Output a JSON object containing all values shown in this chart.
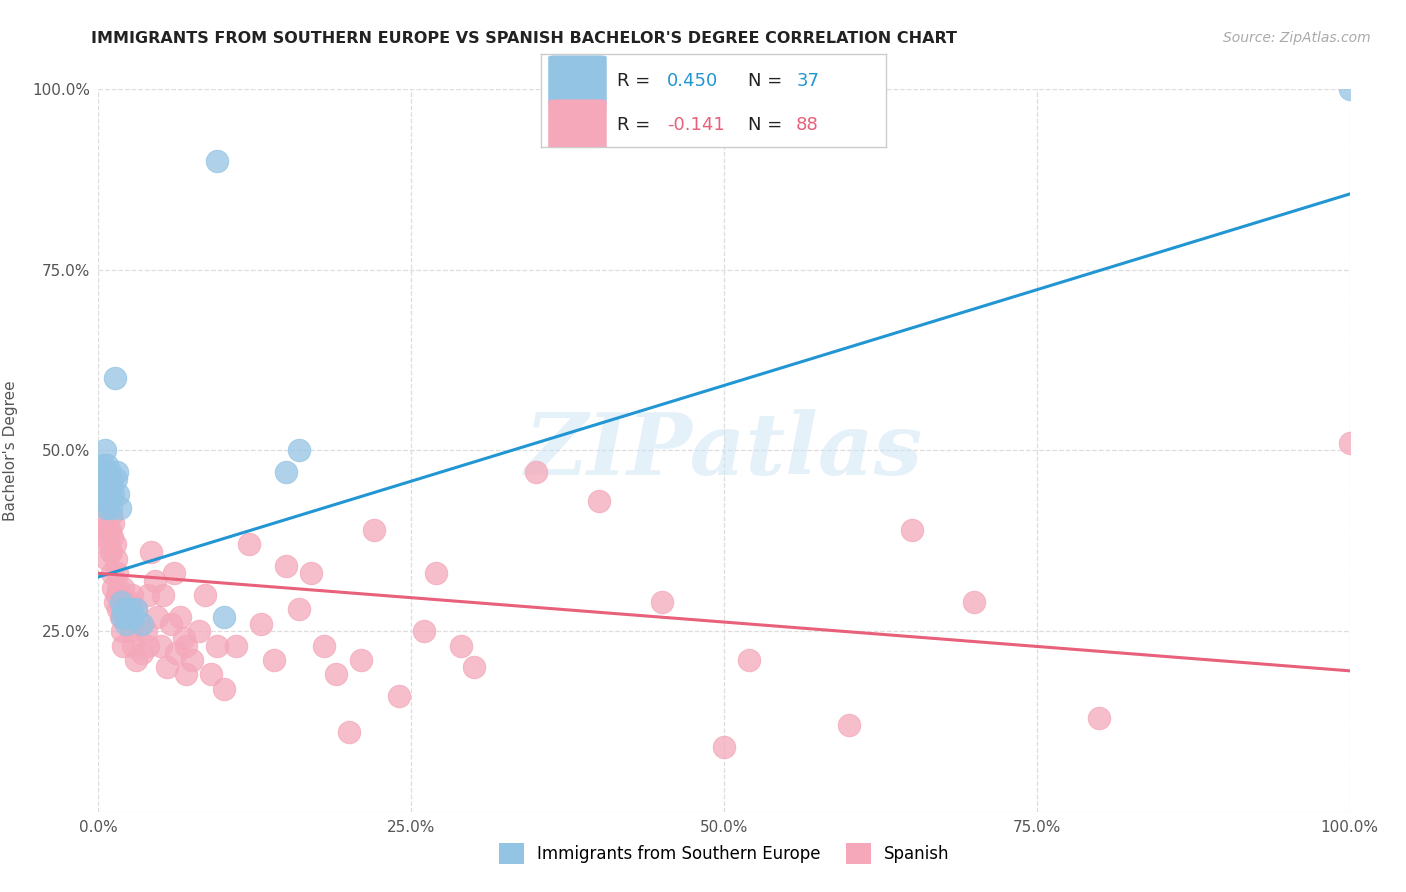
{
  "title": "IMMIGRANTS FROM SOUTHERN EUROPE VS SPANISH BACHELOR'S DEGREE CORRELATION CHART",
  "source": "Source: ZipAtlas.com",
  "ylabel": "Bachelor's Degree",
  "xlim": [
    0.0,
    1.0
  ],
  "ylim": [
    0.0,
    1.0
  ],
  "xticks": [
    0.0,
    0.25,
    0.5,
    0.75,
    1.0
  ],
  "yticks": [
    0.0,
    0.25,
    0.5,
    0.75,
    1.0
  ],
  "xticklabels": [
    "0.0%",
    "25.0%",
    "50.0%",
    "75.0%",
    "100.0%"
  ],
  "yticklabels": [
    "",
    "25.0%",
    "50.0%",
    "75.0%",
    "100.0%"
  ],
  "blue_scatter_color": "#94c4e4",
  "pink_scatter_color": "#f4a8ba",
  "blue_line_color": "#2196d3",
  "pink_line_color": "#e8607a",
  "grid_color": "#dddddd",
  "background_color": "#ffffff",
  "watermark": "ZIPatlas",
  "blue_line": [
    0.0,
    0.325,
    1.0,
    0.855
  ],
  "pink_line": [
    0.0,
    0.33,
    1.0,
    0.195
  ],
  "blue_points": [
    [
      0.003,
      0.46
    ],
    [
      0.004,
      0.44
    ],
    [
      0.004,
      0.48
    ],
    [
      0.005,
      0.47
    ],
    [
      0.005,
      0.43
    ],
    [
      0.005,
      0.5
    ],
    [
      0.006,
      0.45
    ],
    [
      0.006,
      0.42
    ],
    [
      0.007,
      0.48
    ],
    [
      0.007,
      0.44
    ],
    [
      0.008,
      0.46
    ],
    [
      0.008,
      0.43
    ],
    [
      0.009,
      0.47
    ],
    [
      0.009,
      0.44
    ],
    [
      0.01,
      0.45
    ],
    [
      0.01,
      0.42
    ],
    [
      0.011,
      0.46
    ],
    [
      0.012,
      0.44
    ],
    [
      0.013,
      0.6
    ],
    [
      0.014,
      0.46
    ],
    [
      0.015,
      0.47
    ],
    [
      0.016,
      0.44
    ],
    [
      0.017,
      0.42
    ],
    [
      0.018,
      0.29
    ],
    [
      0.019,
      0.27
    ],
    [
      0.02,
      0.28
    ],
    [
      0.022,
      0.26
    ],
    [
      0.024,
      0.27
    ],
    [
      0.026,
      0.28
    ],
    [
      0.028,
      0.27
    ],
    [
      0.03,
      0.28
    ],
    [
      0.035,
      0.26
    ],
    [
      0.095,
      0.9
    ],
    [
      0.1,
      0.27
    ],
    [
      0.15,
      0.47
    ],
    [
      0.16,
      0.5
    ],
    [
      1.0,
      1.0
    ]
  ],
  "pink_points": [
    [
      0.003,
      0.39
    ],
    [
      0.004,
      0.41
    ],
    [
      0.005,
      0.38
    ],
    [
      0.005,
      0.43
    ],
    [
      0.006,
      0.39
    ],
    [
      0.007,
      0.35
    ],
    [
      0.007,
      0.45
    ],
    [
      0.008,
      0.37
    ],
    [
      0.008,
      0.42
    ],
    [
      0.009,
      0.39
    ],
    [
      0.01,
      0.41
    ],
    [
      0.01,
      0.36
    ],
    [
      0.011,
      0.38
    ],
    [
      0.011,
      0.33
    ],
    [
      0.012,
      0.4
    ],
    [
      0.012,
      0.31
    ],
    [
      0.013,
      0.37
    ],
    [
      0.013,
      0.29
    ],
    [
      0.014,
      0.35
    ],
    [
      0.015,
      0.33
    ],
    [
      0.015,
      0.3
    ],
    [
      0.016,
      0.31
    ],
    [
      0.016,
      0.28
    ],
    [
      0.017,
      0.29
    ],
    [
      0.018,
      0.27
    ],
    [
      0.019,
      0.25
    ],
    [
      0.02,
      0.31
    ],
    [
      0.02,
      0.23
    ],
    [
      0.022,
      0.29
    ],
    [
      0.023,
      0.27
    ],
    [
      0.025,
      0.29
    ],
    [
      0.026,
      0.25
    ],
    [
      0.027,
      0.3
    ],
    [
      0.028,
      0.23
    ],
    [
      0.03,
      0.28
    ],
    [
      0.03,
      0.21
    ],
    [
      0.033,
      0.26
    ],
    [
      0.035,
      0.22
    ],
    [
      0.038,
      0.25
    ],
    [
      0.04,
      0.23
    ],
    [
      0.04,
      0.3
    ],
    [
      0.042,
      0.36
    ],
    [
      0.045,
      0.32
    ],
    [
      0.047,
      0.27
    ],
    [
      0.05,
      0.23
    ],
    [
      0.052,
      0.3
    ],
    [
      0.055,
      0.2
    ],
    [
      0.058,
      0.26
    ],
    [
      0.06,
      0.33
    ],
    [
      0.062,
      0.22
    ],
    [
      0.065,
      0.27
    ],
    [
      0.068,
      0.24
    ],
    [
      0.07,
      0.19
    ],
    [
      0.07,
      0.23
    ],
    [
      0.075,
      0.21
    ],
    [
      0.08,
      0.25
    ],
    [
      0.085,
      0.3
    ],
    [
      0.09,
      0.19
    ],
    [
      0.095,
      0.23
    ],
    [
      0.1,
      0.17
    ],
    [
      0.11,
      0.23
    ],
    [
      0.12,
      0.37
    ],
    [
      0.13,
      0.26
    ],
    [
      0.14,
      0.21
    ],
    [
      0.15,
      0.34
    ],
    [
      0.16,
      0.28
    ],
    [
      0.17,
      0.33
    ],
    [
      0.18,
      0.23
    ],
    [
      0.19,
      0.19
    ],
    [
      0.2,
      0.11
    ],
    [
      0.21,
      0.21
    ],
    [
      0.22,
      0.39
    ],
    [
      0.24,
      0.16
    ],
    [
      0.26,
      0.25
    ],
    [
      0.27,
      0.33
    ],
    [
      0.29,
      0.23
    ],
    [
      0.3,
      0.2
    ],
    [
      0.35,
      0.47
    ],
    [
      0.4,
      0.43
    ],
    [
      0.45,
      0.29
    ],
    [
      0.5,
      0.09
    ],
    [
      0.52,
      0.21
    ],
    [
      0.6,
      0.12
    ],
    [
      0.65,
      0.39
    ],
    [
      0.7,
      0.29
    ],
    [
      0.8,
      0.13
    ],
    [
      1.0,
      0.51
    ]
  ]
}
